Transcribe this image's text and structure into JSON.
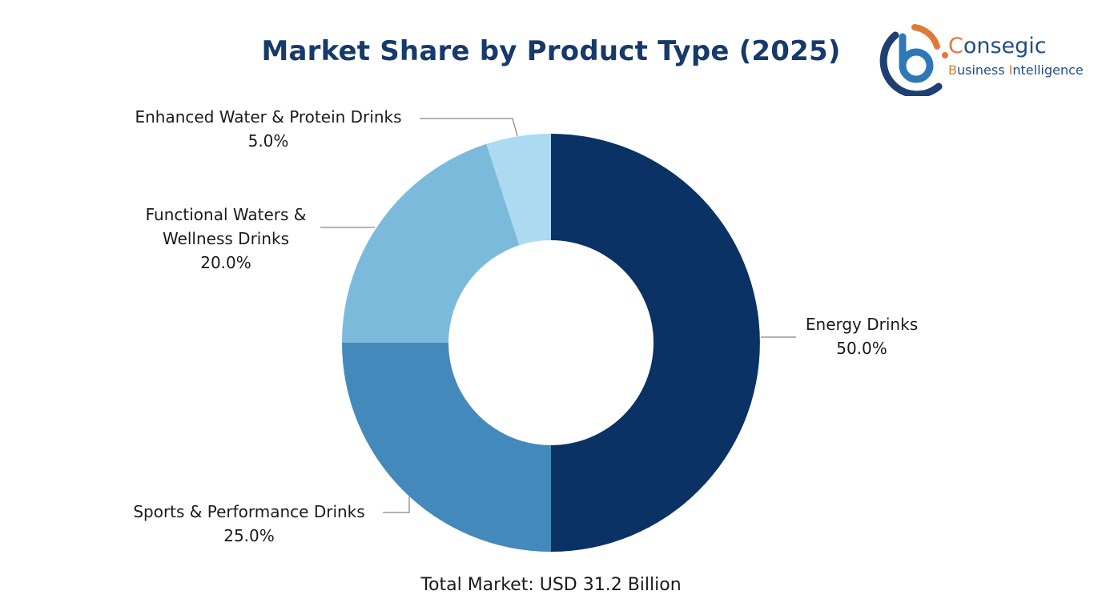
{
  "title": "Market Share by Product Type (2025)",
  "logo": {
    "brand_accent": "C",
    "brand_rest": "onsegic",
    "tagline_b": "B",
    "tagline_mid": "usiness ",
    "tagline_i": "I",
    "tagline_rest": "ntelligence",
    "colors": {
      "navy": "#1f4f86",
      "orange": "#e07a3a"
    }
  },
  "labels": {
    "energy": {
      "name": "Energy Drinks",
      "pct": "50.0%"
    },
    "sports": {
      "name": "Sports & Performance Drinks",
      "pct": "25.0%"
    },
    "functional": {
      "name_line1": "Functional Waters &",
      "name_line2": "Wellness Drinks",
      "pct": "20.0%"
    },
    "enhanced": {
      "name": "Enhanced Water & Protein Drinks",
      "pct": "5.0%"
    }
  },
  "footer": {
    "total": "Total Market: USD 31.2 Billion"
  },
  "chart_data": {
    "type": "pie",
    "subtype": "donut",
    "title": "Market Share by Product Type (2025)",
    "categories": [
      "Energy Drinks",
      "Sports & Performance Drinks",
      "Functional Waters & Wellness Drinks",
      "Enhanced Water & Protein Drinks"
    ],
    "values": [
      50.0,
      25.0,
      20.0,
      5.0
    ],
    "unit": "%",
    "colors": [
      "#0a3264",
      "#4489bc",
      "#7cbadc",
      "#acdaf0"
    ],
    "start_angle": "12 o'clock",
    "direction": "clockwise",
    "annotation": "Total Market: USD 31.2 Billion",
    "legend": "none (leader-line labels)"
  }
}
